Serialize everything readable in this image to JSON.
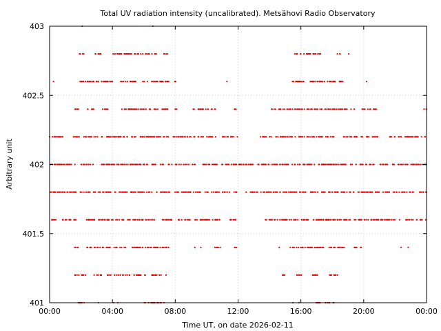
{
  "chart_data": {
    "type": "scatter",
    "title": "Total UV radiation intensity (uncalibrated). Metsähovi Radio Observatory",
    "xlabel": "Time UT, on date 2026-02-11",
    "ylabel": "Arbitrary unit",
    "xlim": [
      0,
      24
    ],
    "ylim": [
      401,
      403
    ],
    "grid": true,
    "x_ticks": [
      0,
      4,
      8,
      12,
      16,
      20,
      24
    ],
    "x_tick_labels": [
      "00:00",
      "04:00",
      "08:00",
      "12:00",
      "16:00",
      "20:00",
      "00:00"
    ],
    "y_ticks": [
      401,
      401.5,
      402,
      402.5,
      403
    ],
    "y_tick_labels": [
      "401",
      "401.5",
      "402",
      "402.5",
      "403"
    ],
    "color": "#e00000",
    "levels": [
      {
        "y": 403.0,
        "ranges": [
          [
            2.0,
            2.1
          ],
          [
            6.5,
            6.6
          ]
        ]
      },
      {
        "y": 402.8,
        "ranges": [
          [
            1.9,
            2.2
          ],
          [
            2.8,
            3.3
          ],
          [
            4.0,
            6.8
          ],
          [
            7.2,
            7.5
          ],
          [
            15.6,
            17.3
          ],
          [
            18.3,
            18.5
          ],
          [
            19.0,
            19.1
          ]
        ]
      },
      {
        "y": 402.6,
        "ranges": [
          [
            0.2,
            0.3
          ],
          [
            1.6,
            4.1
          ],
          [
            4.5,
            5.5
          ],
          [
            5.9,
            7.6
          ],
          [
            7.9,
            8.1
          ],
          [
            11.2,
            11.3
          ],
          [
            15.3,
            18.7
          ],
          [
            20.1,
            20.2
          ]
        ]
      },
      {
        "y": 402.4,
        "ranges": [
          [
            1.5,
            1.9
          ],
          [
            2.4,
            2.8
          ],
          [
            3.3,
            3.7
          ],
          [
            4.6,
            7.6
          ],
          [
            7.9,
            8.1
          ],
          [
            9.1,
            10.6
          ],
          [
            11.7,
            11.9
          ],
          [
            14.1,
            16.1
          ],
          [
            16.2,
            19.4
          ],
          [
            19.9,
            20.8
          ],
          [
            23.8,
            24.0
          ]
        ]
      },
      {
        "y": 402.2,
        "ranges": [
          [
            0.0,
            0.9
          ],
          [
            1.5,
            7.7
          ],
          [
            7.8,
            10.6
          ],
          [
            10.9,
            12.0
          ],
          [
            13.3,
            18.2
          ],
          [
            18.5,
            19.6
          ],
          [
            19.8,
            20.9
          ],
          [
            21.6,
            24.0
          ]
        ]
      },
      {
        "y": 402.0,
        "ranges": [
          [
            0.0,
            1.7
          ],
          [
            2.0,
            7.8
          ],
          [
            7.9,
            24.0
          ]
        ]
      },
      {
        "y": 401.8,
        "ranges": [
          [
            0.0,
            7.7
          ],
          [
            7.8,
            12.0
          ],
          [
            12.5,
            16.4
          ],
          [
            16.6,
            19.4
          ],
          [
            19.6,
            24.0
          ]
        ]
      },
      {
        "y": 401.6,
        "ranges": [
          [
            0.0,
            0.4
          ],
          [
            0.8,
            1.7
          ],
          [
            2.3,
            7.8
          ],
          [
            8.2,
            9.0
          ],
          [
            9.2,
            11.0
          ],
          [
            11.4,
            11.9
          ],
          [
            13.7,
            16.5
          ],
          [
            16.7,
            24.0
          ]
        ]
      },
      {
        "y": 401.4,
        "ranges": [
          [
            1.6,
            1.9
          ],
          [
            2.3,
            2.7
          ],
          [
            2.8,
            3.1
          ],
          [
            3.2,
            3.9
          ],
          [
            4.1,
            7.6
          ],
          [
            9.2,
            9.3
          ],
          [
            9.6,
            9.7
          ],
          [
            10.5,
            10.9
          ],
          [
            11.7,
            11.9
          ],
          [
            14.6,
            14.7
          ],
          [
            15.3,
            17.5
          ],
          [
            17.8,
            18.8
          ],
          [
            19.4,
            19.9
          ],
          [
            22.3,
            22.4
          ],
          [
            22.8,
            22.9
          ]
        ]
      },
      {
        "y": 401.2,
        "ranges": [
          [
            1.6,
            2.3
          ],
          [
            2.7,
            3.3
          ],
          [
            3.6,
            3.9
          ],
          [
            4.1,
            4.7
          ],
          [
            4.8,
            6.1
          ],
          [
            6.5,
            7.2
          ],
          [
            7.4,
            7.5
          ],
          [
            14.8,
            15.1
          ],
          [
            15.7,
            16.1
          ],
          [
            16.6,
            17.1
          ],
          [
            17.8,
            18.4
          ]
        ]
      },
      {
        "y": 401.0,
        "ranges": [
          [
            1.8,
            2.3
          ],
          [
            3.1,
            3.2
          ],
          [
            4.0,
            4.1
          ],
          [
            4.3,
            4.4
          ],
          [
            6.0,
            7.3
          ],
          [
            15.4,
            15.5
          ],
          [
            15.8,
            15.9
          ],
          [
            16.9,
            18.1
          ]
        ]
      }
    ]
  }
}
